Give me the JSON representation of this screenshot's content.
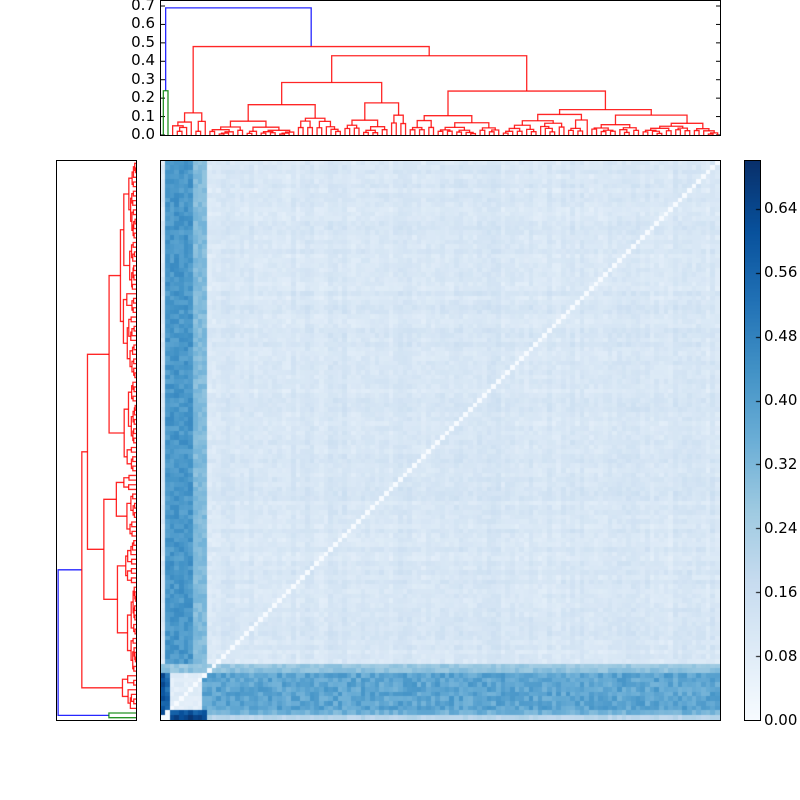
{
  "chart_data": [
    {
      "type": "dendrogram",
      "name": "column dendrogram (top)",
      "orientation": "top",
      "ylim": [
        0.0,
        0.7
      ],
      "yticks": [
        "0.0",
        "0.1",
        "0.2",
        "0.3",
        "0.4",
        "0.5",
        "0.6",
        "0.7"
      ],
      "link_colors": {
        "above_threshold": "#0000ff",
        "cluster_1": "#008000",
        "cluster_2": "#ff0000"
      },
      "major_merges": [
        {
          "height": 0.69,
          "color": "#0000ff",
          "left": "green cluster",
          "right": "red cluster"
        },
        {
          "height": 0.24,
          "color": "#008000",
          "note": "small green cluster of 2 leaves"
        },
        {
          "height": 0.48,
          "color": "#ff0000"
        },
        {
          "height": 0.43,
          "color": "#ff0000"
        },
        {
          "height": 0.31,
          "color": "#ff0000"
        }
      ],
      "n_leaves": 120
    },
    {
      "type": "dendrogram",
      "name": "row dendrogram (left)",
      "orientation": "left",
      "link_colors": {
        "above_threshold": "#0000ff",
        "cluster_1": "#008000",
        "cluster_2": "#ff0000"
      },
      "n_leaves": 120
    },
    {
      "type": "heatmap",
      "name": "clustered distance matrix",
      "rows": 120,
      "cols": 120,
      "colormap": "Blues",
      "diagonal": 0.0,
      "vmin": 0.0,
      "vmax": 0.7,
      "structure": {
        "background_range": [
          0.05,
          0.2
        ],
        "high_distance_columns": "first ~10 columns (~0.35–0.50)",
        "high_distance_bottom_rows": "last ~8 rows (~0.35–0.50)",
        "darkest_block": "bottom-left corner rows 117–119, cols 1–7 (~0.65–0.70)",
        "light_block": "bottom-left rows 107–116, cols 1–7 (~0.05–0.10)"
      }
    },
    {
      "type": "colorbar",
      "colormap": "Blues",
      "range": [
        0.0,
        0.7
      ],
      "ticks": [
        "0.00",
        "0.08",
        "0.16",
        "0.24",
        "0.32",
        "0.40",
        "0.48",
        "0.56",
        "0.64"
      ]
    }
  ],
  "colors": {
    "blue_link": "#0000ff",
    "green_link": "#008000",
    "red_link": "#ff0000",
    "cmap_low": "#f7fbff",
    "cmap_high": "#08306b"
  }
}
